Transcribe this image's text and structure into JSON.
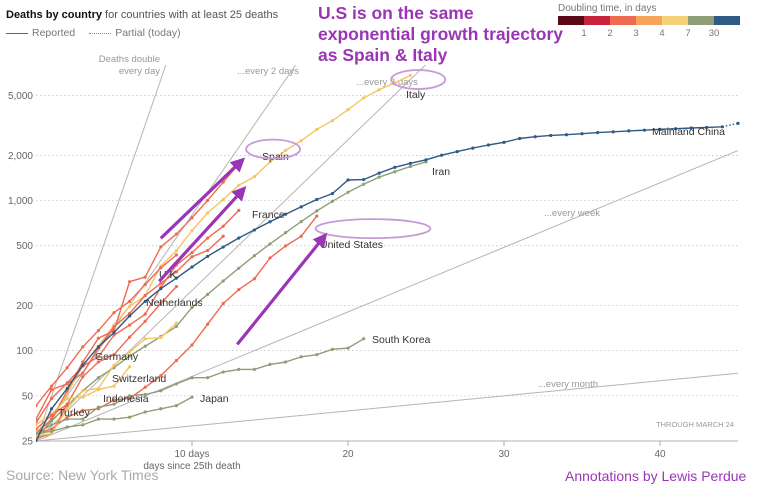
{
  "header": {
    "title_bold": "Deaths by country",
    "title_rest": "for countries with at least 25 deaths",
    "legend_reported": "Reported",
    "legend_partial": "Partial (today)"
  },
  "headline": "U.S is on the same exponential growth trajectory as Spain & Italy",
  "doubling_legend": {
    "title": "Doubling time, in days",
    "colors": [
      "#5c0a1a",
      "#c8233c",
      "#ee6a50",
      "#f6a35c",
      "#f5d27a",
      "#8e9f76",
      "#2e5a84"
    ],
    "ticks": [
      "1",
      "2",
      "3",
      "4",
      "7",
      "30"
    ]
  },
  "footer": {
    "source": "Source: New York Times",
    "credit": "Annotations by Lewis Perdue",
    "through": "THROUGH MARCH 24"
  },
  "colors": {
    "accent": "#9a36b5",
    "grid": "#bbbbbb",
    "reference": "#b5b5b5"
  },
  "chart_data": {
    "type": "line",
    "scale_y": "log",
    "xlabel": "days since 25th death",
    "xlim": [
      0,
      45
    ],
    "ylim": [
      25,
      8000
    ],
    "x_ticks": [
      {
        "value": 10,
        "label": "10 days"
      },
      {
        "value": 20,
        "label": "20"
      },
      {
        "value": 30,
        "label": "30"
      },
      {
        "value": 40,
        "label": "40"
      }
    ],
    "y_ticks": [
      25,
      50,
      100,
      200,
      500,
      1000,
      2000,
      5000
    ],
    "y_tick_labels": [
      "25",
      "50",
      "100",
      "200",
      "500",
      "1,000",
      "2,000",
      "5,000"
    ],
    "reference_lines": [
      {
        "label": "Deaths double every day",
        "doubling_days": 1
      },
      {
        "label": "...every 2 days",
        "doubling_days": 2
      },
      {
        "label": "...every 3 days",
        "doubling_days": 3
      },
      {
        "label": "...every week",
        "doubling_days": 7
      },
      {
        "label": "...every month",
        "doubling_days": 30
      }
    ],
    "series": [
      {
        "name": "Mainland China",
        "color": "#2e5a84",
        "x": [
          0,
          1,
          2,
          3,
          4,
          5,
          6,
          7,
          8,
          9,
          10,
          11,
          12,
          13,
          14,
          15,
          16,
          17,
          18,
          19,
          20,
          21,
          22,
          23,
          24,
          25,
          26,
          27,
          28,
          29,
          30,
          31,
          32,
          33,
          34,
          35,
          36,
          37,
          38,
          39,
          40,
          41,
          42,
          43,
          44,
          45
        ],
        "y": [
          25,
          41,
          56,
          80,
          106,
          132,
          170,
          213,
          259,
          304,
          361,
          425,
          490,
          563,
          637,
          722,
          811,
          908,
          1016,
          1113,
          1370,
          1380,
          1523,
          1665,
          1770,
          1868,
          2004,
          2118,
          2236,
          2345,
          2442,
          2592,
          2663,
          2715,
          2744,
          2788,
          2835,
          2870,
          2912,
          2943,
          2981,
          3012,
          3042,
          3070,
          3100,
          3270
        ]
      },
      {
        "name": "Italy",
        "color": "#f5c562",
        "x": [
          0,
          1,
          2,
          3,
          4,
          5,
          6,
          7,
          8,
          9,
          10,
          11,
          12,
          13,
          14,
          15,
          16,
          17,
          18,
          19,
          20,
          21,
          22,
          23,
          24
        ],
        "y": [
          29,
          34,
          52,
          79,
          107,
          148,
          197,
          233,
          366,
          463,
          631,
          827,
          1016,
          1266,
          1441,
          1809,
          2158,
          2503,
          2978,
          3405,
          4032,
          4825,
          5476,
          6077,
          6820
        ]
      },
      {
        "name": "Spain",
        "color": "#ee6a50",
        "x": [
          0,
          1,
          2,
          3,
          4,
          5,
          6,
          7,
          8,
          9,
          10,
          11,
          12,
          13
        ],
        "y": [
          28,
          35,
          54,
          84,
          121,
          136,
          288,
          309,
          491,
          598,
          767,
          1002,
          1326,
          1756
        ]
      },
      {
        "name": "France",
        "color": "#ee6a50",
        "x": [
          0,
          1,
          2,
          3,
          4,
          5,
          6,
          7,
          8,
          9,
          10,
          11,
          12,
          13
        ],
        "y": [
          33,
          48,
          61,
          79,
          91,
          127,
          148,
          175,
          264,
          372,
          450,
          562,
          674,
          860
        ]
      },
      {
        "name": "Iran",
        "color": "#8e9f76",
        "x": [
          0,
          1,
          2,
          3,
          4,
          5,
          6,
          7,
          8,
          9,
          10,
          11,
          12,
          13,
          14,
          15,
          16,
          17,
          18,
          19,
          20,
          21,
          22,
          23,
          24,
          25
        ],
        "y": [
          26,
          34,
          43,
          54,
          66,
          77,
          92,
          107,
          124,
          145,
          194,
          237,
          291,
          354,
          429,
          514,
          611,
          724,
          853,
          988,
          1135,
          1284,
          1433,
          1556,
          1685,
          1812
        ]
      },
      {
        "name": "U.K.",
        "color": "#ee6a50",
        "x": [
          0,
          1,
          2,
          3,
          4,
          5,
          6,
          7,
          8,
          9,
          10,
          11,
          12
        ],
        "y": [
          35,
          55,
          60,
          71,
          104,
          144,
          177,
          233,
          281,
          335,
          422,
          465,
          578
        ]
      },
      {
        "name": "Netherlands",
        "color": "#ee6a50",
        "x": [
          0,
          1,
          2,
          3,
          4,
          5,
          6,
          7,
          8,
          9
        ],
        "y": [
          43,
          58,
          77,
          106,
          136,
          179,
          213,
          276,
          356,
          434
        ]
      },
      {
        "name": "United States",
        "color": "#ee6a50",
        "x": [
          0,
          1,
          2,
          3,
          4,
          5,
          6,
          7,
          8,
          9,
          10,
          11,
          12,
          13,
          14,
          15,
          16,
          17,
          18
        ],
        "y": [
          28,
          30,
          36,
          40,
          41,
          47,
          48,
          57,
          68,
          86,
          109,
          150,
          206,
          255,
          301,
          414,
          499,
          578,
          788
        ]
      },
      {
        "name": "Germany",
        "color": "#ee6a50",
        "x": [
          0,
          1,
          2,
          3,
          4,
          5,
          6,
          7,
          8,
          9
        ],
        "y": [
          26,
          28,
          44,
          67,
          84,
          94,
          123,
          157,
          206,
          267
        ]
      },
      {
        "name": "Switzerland",
        "color": "#f5c562",
        "x": [
          0,
          1,
          2,
          3,
          4,
          5,
          6,
          7,
          8,
          9
        ],
        "y": [
          27,
          28,
          41,
          54,
          56,
          80,
          98,
          120,
          122,
          153
        ]
      },
      {
        "name": "South Korea",
        "color": "#8e9f76",
        "x": [
          0,
          1,
          2,
          3,
          4,
          5,
          6,
          7,
          8,
          9,
          10,
          11,
          12,
          13,
          14,
          15,
          16,
          17,
          18,
          19,
          20,
          21
        ],
        "y": [
          28,
          32,
          35,
          35,
          42,
          44,
          50,
          51,
          54,
          60,
          66,
          66,
          72,
          75,
          75,
          81,
          84,
          91,
          94,
          102,
          104,
          120
        ]
      },
      {
        "name": "Indonesia",
        "color": "#f5c562",
        "x": [
          0,
          1,
          2,
          3,
          4,
          5,
          6
        ],
        "y": [
          32,
          38,
          48,
          49,
          55,
          58,
          78
        ]
      },
      {
        "name": "Japan",
        "color": "#8e9f76",
        "x": [
          0,
          1,
          2,
          3,
          4,
          5,
          6,
          7,
          8,
          9,
          10
        ],
        "y": [
          28,
          29,
          31,
          32,
          35,
          35,
          36,
          39,
          41,
          43,
          49
        ]
      },
      {
        "name": "Turkey",
        "color": "#ee6a50",
        "x": [
          0,
          1,
          2
        ],
        "y": [
          30,
          37,
          44
        ]
      }
    ],
    "annotations": [
      {
        "type": "ellipse",
        "label": "Italy",
        "x": 24.5,
        "y": 6400
      },
      {
        "type": "ellipse",
        "label": "Spain",
        "x": 15.2,
        "y": 2200
      },
      {
        "type": "ellipse",
        "label": "United States",
        "x": 21.6,
        "y": 650
      },
      {
        "type": "arrow",
        "from": [
          8.0,
          560
        ],
        "to": [
          13.2,
          1850
        ]
      },
      {
        "type": "arrow",
        "from": [
          7.9,
          290
        ],
        "to": [
          13.3,
          1190
        ]
      },
      {
        "type": "arrow",
        "from": [
          12.9,
          110
        ],
        "to": [
          18.5,
          580
        ]
      }
    ]
  }
}
